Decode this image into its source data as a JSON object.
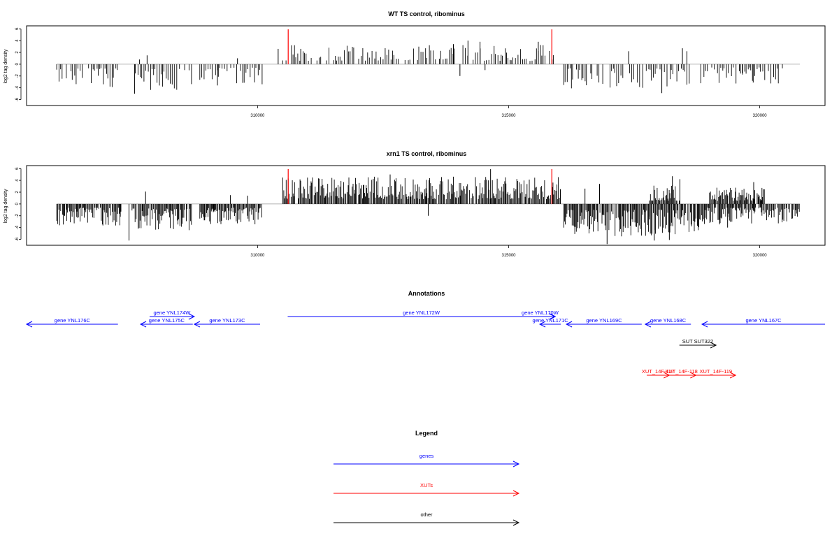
{
  "chart_data": [
    {
      "type": "bar",
      "title": "WT TS control, ribominus",
      "ylabel": "log2 tag density",
      "ylim": [
        -7,
        6.5
      ],
      "yticks": [
        6,
        4,
        2,
        0,
        -2,
        -4,
        -6
      ],
      "xlim": [
        305400,
        321300
      ],
      "xticks": [
        310000,
        315000,
        320000
      ],
      "grid": false,
      "baseline_range": [
        306000,
        320800
      ],
      "markers": [
        310610,
        315860
      ],
      "marker_color": "#ff0000",
      "bar_color": "#000000",
      "density": 1,
      "segments": [
        {
          "start": 306000,
          "end": 307300,
          "sign": -1,
          "mag": 1.9
        },
        {
          "start": 307500,
          "end": 308700,
          "sign": -1,
          "mag": 2.3
        },
        {
          "start": 308850,
          "end": 310100,
          "sign": -1,
          "mag": 1.7
        },
        {
          "start": 310500,
          "end": 315900,
          "sign": 1,
          "mag": 1.6
        },
        {
          "start": 316100,
          "end": 318600,
          "sign": -1,
          "mag": 2.0
        },
        {
          "start": 318800,
          "end": 320500,
          "sign": -1,
          "mag": 1.6
        }
      ],
      "peaks": [
        {
          "x": 307550,
          "y": -5.0
        },
        {
          "x": 307800,
          "y": 1.5
        },
        {
          "x": 307650,
          "y": 0.8
        },
        {
          "x": 309200,
          "y": -3.6
        },
        {
          "x": 309600,
          "y": 1.0
        },
        {
          "x": 310410,
          "y": 2.6
        },
        {
          "x": 310860,
          "y": 2.6
        },
        {
          "x": 314190,
          "y": 4.0
        },
        {
          "x": 314430,
          "y": 3.8
        },
        {
          "x": 313900,
          "y": 3.4
        },
        {
          "x": 315590,
          "y": 3.8
        },
        {
          "x": 314030,
          "y": -2.0
        },
        {
          "x": 314530,
          "y": -1.0
        },
        {
          "x": 318050,
          "y": -4.9
        },
        {
          "x": 318460,
          "y": 2.7
        },
        {
          "x": 318550,
          "y": 2.2
        },
        {
          "x": 317390,
          "y": 2.2
        },
        {
          "x": 319870,
          "y": -3.1
        },
        {
          "x": 319650,
          "y": -1.5
        }
      ]
    },
    {
      "type": "bar",
      "title": "xrn1 TS control, ribominus",
      "ylabel": "log2 tag density",
      "ylim": [
        -7,
        6.5
      ],
      "yticks": [
        6,
        4,
        2,
        0,
        -2,
        -4,
        -6
      ],
      "xlim": [
        305400,
        321300
      ],
      "xticks": [
        310000,
        315000,
        320000
      ],
      "grid": false,
      "baseline_range": [
        306000,
        320800
      ],
      "markers": [
        310610,
        315860
      ],
      "marker_color": "#ff0000",
      "bar_color": "#000000",
      "density": 2,
      "segments": [
        {
          "start": 306000,
          "end": 307300,
          "sign": -1,
          "mag": 1.8
        },
        {
          "start": 307500,
          "end": 308700,
          "sign": -1,
          "mag": 2.2
        },
        {
          "start": 308850,
          "end": 310100,
          "sign": -1,
          "mag": 1.8
        },
        {
          "start": 310500,
          "end": 316050,
          "sign": 1,
          "mag": 2.3
        },
        {
          "start": 316100,
          "end": 317800,
          "sign": -1,
          "mag": 2.8
        },
        {
          "start": 317800,
          "end": 318400,
          "sign": 1,
          "mag": 1.6
        },
        {
          "start": 317800,
          "end": 318900,
          "sign": -1,
          "mag": 2.6
        },
        {
          "start": 318900,
          "end": 320800,
          "sign": -1,
          "mag": 1.7
        },
        {
          "start": 319000,
          "end": 320100,
          "sign": 1,
          "mag": 1.4
        }
      ],
      "peaks": [
        {
          "x": 307440,
          "y": -6.2
        },
        {
          "x": 307770,
          "y": 2.1
        },
        {
          "x": 309250,
          "y": -3.0
        },
        {
          "x": 309460,
          "y": 1.5
        },
        {
          "x": 309800,
          "y": 1.4
        },
        {
          "x": 310610,
          "y": 4.3
        },
        {
          "x": 312640,
          "y": 5.0
        },
        {
          "x": 314640,
          "y": 5.9
        },
        {
          "x": 313400,
          "y": -2.0
        },
        {
          "x": 316030,
          "y": 2.5
        },
        {
          "x": 316520,
          "y": 2.6
        },
        {
          "x": 316810,
          "y": 3.4
        },
        {
          "x": 316960,
          "y": -6.8
        },
        {
          "x": 317900,
          "y": -6.2
        },
        {
          "x": 318200,
          "y": -6.1
        },
        {
          "x": 318260,
          "y": 4.7
        },
        {
          "x": 318410,
          "y": 4.2
        },
        {
          "x": 319880,
          "y": 3.7
        },
        {
          "x": 319360,
          "y": -4.0
        }
      ]
    }
  ],
  "annotations": {
    "title": "Annotations",
    "features": [
      {
        "label": "gene YNL176C",
        "start": 305400,
        "end": 307220,
        "strand": "-",
        "row": 1,
        "kind": "gene",
        "color": "#0000ff"
      },
      {
        "label": "gene YNL174W",
        "start": 307850,
        "end": 308740,
        "strand": "+",
        "row": 0,
        "kind": "gene",
        "color": "#0000ff"
      },
      {
        "label": "gene YNL175C",
        "start": 307670,
        "end": 308710,
        "strand": "-",
        "row": 1,
        "kind": "gene",
        "color": "#0000ff"
      },
      {
        "label": "gene YNL173C",
        "start": 308740,
        "end": 310050,
        "strand": "-",
        "row": 1,
        "kind": "gene",
        "color": "#0000ff"
      },
      {
        "label": "gene YNL172W",
        "start": 310600,
        "end": 315920,
        "strand": "+",
        "row": 0,
        "kind": "gene",
        "color": "#0000ff"
      },
      {
        "label": "gene YNL170W",
        "start": 315320,
        "end": 315930,
        "strand": "+",
        "row": 0,
        "kind": "gene",
        "color": "#0000ff"
      },
      {
        "label": "gene YNL171C",
        "start": 315620,
        "end": 316040,
        "strand": "-",
        "row": 1,
        "kind": "gene",
        "color": "#0000ff"
      },
      {
        "label": "gene YNL169C",
        "start": 316150,
        "end": 317650,
        "strand": "-",
        "row": 1,
        "kind": "gene",
        "color": "#0000ff"
      },
      {
        "label": "gene YNL168C",
        "start": 317720,
        "end": 318630,
        "strand": "-",
        "row": 1,
        "kind": "gene",
        "color": "#0000ff"
      },
      {
        "label": "gene YNL167C",
        "start": 318850,
        "end": 321300,
        "strand": "-",
        "row": 1,
        "kind": "gene",
        "color": "#0000ff"
      },
      {
        "label": "SUT SUT322",
        "start": 318400,
        "end": 319130,
        "strand": "+",
        "row": 2,
        "kind": "other",
        "color": "#000000"
      },
      {
        "label": "XUT_14F-117",
        "start": 317750,
        "end": 318200,
        "strand": "+",
        "row": 3,
        "kind": "xut",
        "color": "#ff0000"
      },
      {
        "label": "XUT_14F-118",
        "start": 318150,
        "end": 318730,
        "strand": "+",
        "row": 3,
        "kind": "xut",
        "color": "#ff0000"
      },
      {
        "label": "XUT_14F-119",
        "start": 318730,
        "end": 319520,
        "strand": "+",
        "row": 3,
        "kind": "xut",
        "color": "#ff0000"
      }
    ]
  },
  "legend": {
    "title": "Legend",
    "items": [
      {
        "label": "genes",
        "color": "#0000ff"
      },
      {
        "label": "XUTs",
        "color": "#ff0000"
      },
      {
        "label": "other",
        "color": "#000000"
      }
    ]
  }
}
